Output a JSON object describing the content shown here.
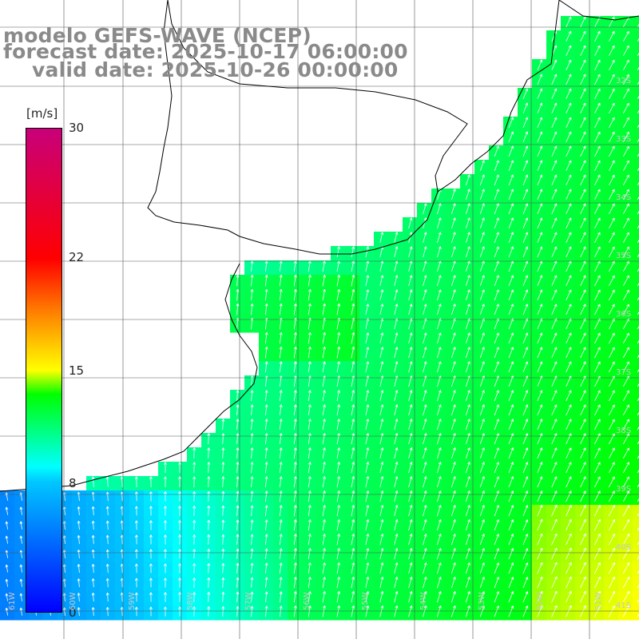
{
  "title": {
    "line1": "modelo GEFS-WAVE (NCEP)",
    "line2": "forecast date: 2025-10-17 06:00:00",
    "line3": "valid date: 2025-10-26 00:00:00"
  },
  "colorbar": {
    "unit": "[m/s]",
    "ticks": [
      {
        "value": 30,
        "label": "30"
      },
      {
        "value": 22,
        "label": "22"
      },
      {
        "value": 15,
        "label": "15"
      },
      {
        "value": 8,
        "label": "8"
      },
      {
        "value": 0,
        "label": "0"
      }
    ],
    "range": [
      0,
      30
    ],
    "colors": [
      "#0000ff",
      "#00c8ff",
      "#00ffff",
      "#00ff00",
      "#ffff00",
      "#ff8000",
      "#ff0000",
      "#c8007a"
    ]
  },
  "lat_labels": [
    "32S",
    "33S",
    "34S",
    "35S",
    "36S",
    "37S",
    "38S",
    "39S",
    "40S",
    "41S"
  ],
  "lon_labels": [
    "61W",
    "60W",
    "59W",
    "58W",
    "57W",
    "56W",
    "55W",
    "54W",
    "53W",
    "52W",
    "51W"
  ],
  "colors": {
    "land": "#ffffff",
    "grid": "#555555",
    "coast": "#000000",
    "arrow": "#ffffff"
  }
}
